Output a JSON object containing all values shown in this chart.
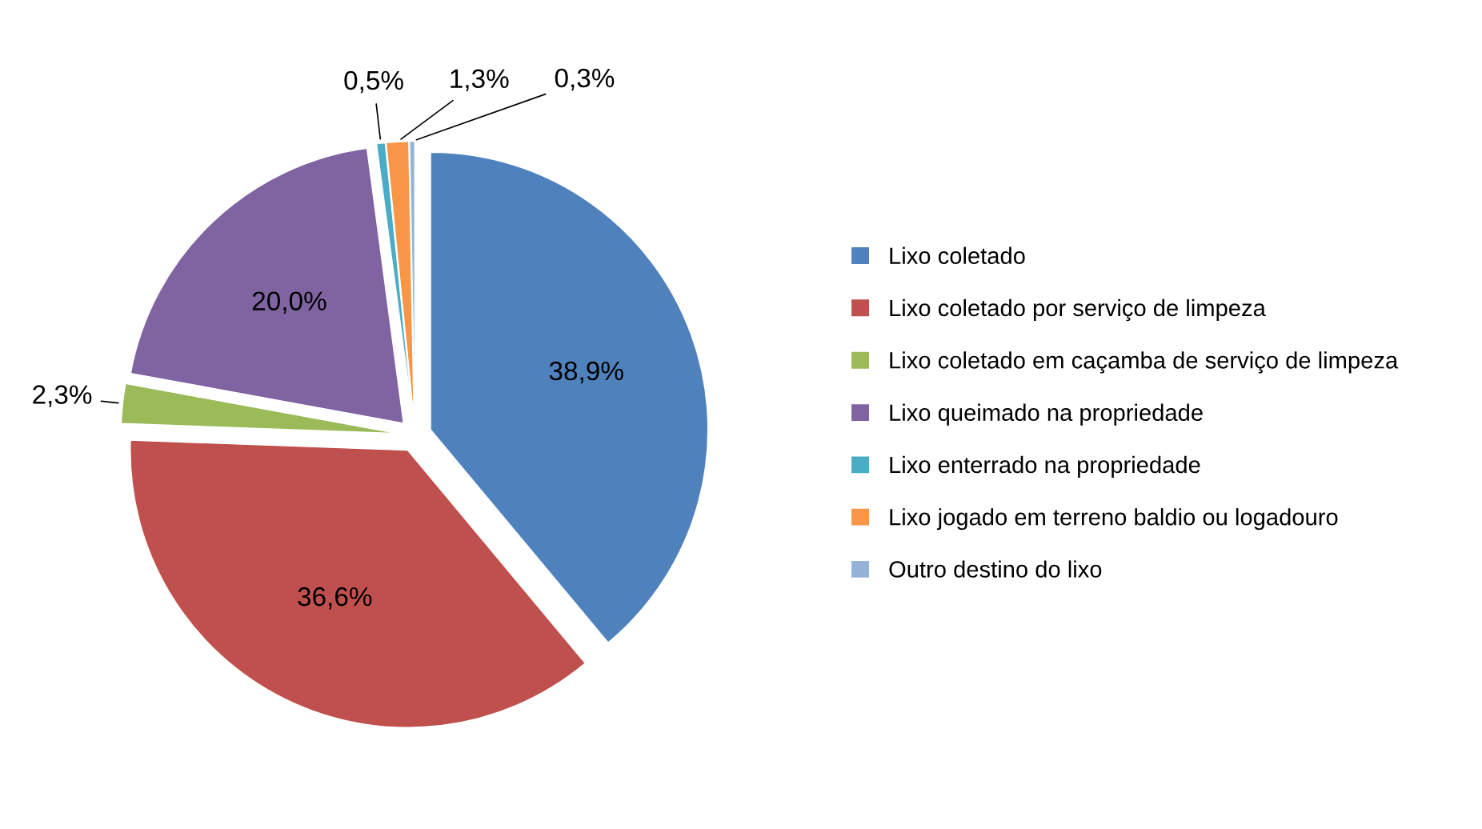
{
  "chart_data": {
    "type": "pie",
    "categories": [
      "Lixo coletado",
      "Lixo coletado por serviço de limpeza",
      "Lixo coletado em caçamba de serviço de limpeza",
      "Lixo queimado na propriedade",
      "Lixo enterrado na propriedade",
      "Lixo jogado em terreno baldio ou logadouro",
      "Outro destino do lixo"
    ],
    "values": [
      38.9,
      36.6,
      2.3,
      20.0,
      0.5,
      1.3,
      0.3
    ],
    "value_labels": [
      "38,9%",
      "36,6%",
      "2,3%",
      "20,0%",
      "0,5%",
      "1,3%",
      "0,3%"
    ],
    "colors": [
      "#4f81bd",
      "#c0504d",
      "#9bbb59",
      "#8064a2",
      "#4bacc6",
      "#f79646",
      "#95b3d7"
    ],
    "legend": "right"
  }
}
